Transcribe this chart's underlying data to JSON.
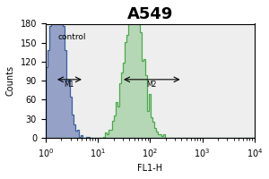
{
  "title": "A549",
  "xlabel": "FL1-H",
  "ylabel": "Counts",
  "xlim_log": [
    1,
    10000
  ],
  "ylim": [
    0,
    180
  ],
  "yticks": [
    0,
    30,
    60,
    90,
    120,
    150,
    180
  ],
  "control_label": "control",
  "bg_color": "#eeeeee",
  "blue_color": "#3a5fa0",
  "green_color": "#4aaa4a",
  "blue_fill": "#7788bb",
  "green_fill": "#99cc99",
  "m1_label": "M1",
  "m2_label": "M2",
  "title_fontsize": 13,
  "axis_fontsize": 7,
  "label_fontsize": 7,
  "blue_mean_log": 0.5,
  "blue_sigma": 0.35,
  "green_mean_log": 3.9,
  "green_sigma": 0.42,
  "n_samples": 3000,
  "n_bins": 120
}
